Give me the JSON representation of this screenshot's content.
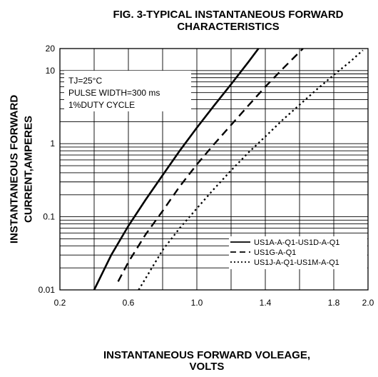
{
  "chart_data": {
    "type": "line",
    "title_line1": "FIG. 3-TYPICAL INSTANTANEOUS FORWARD",
    "title_line2": "CHARACTERISTICS",
    "ylabel_line1": "INSTANTANEOUS FORWARD",
    "ylabel_line2": "CURRENT,AMPERES",
    "xlabel_line1": "INSTANTANEOUS FORWARD VOLEAGE,",
    "xlabel_line2": "VOLTS",
    "xlim": [
      0.2,
      2.0
    ],
    "ylim": [
      0.01,
      20
    ],
    "yscale": "log",
    "grid": true,
    "x_ticks": [
      "0.2",
      "0.6",
      "1.0",
      "1.4",
      "1.8",
      "2.0"
    ],
    "x_tick_values": [
      0.2,
      0.6,
      1.0,
      1.4,
      1.8,
      2.0
    ],
    "y_ticks": [
      "20",
      "10",
      "1",
      "0.1",
      "0.01"
    ],
    "y_tick_values": [
      20,
      10,
      1,
      0.1,
      0.01
    ],
    "conditions": [
      "TJ=25°C",
      "PULSE WIDTH=300 ms",
      "1%DUTY CYCLE"
    ],
    "legend_position": "bottom-right",
    "series": [
      {
        "name": "US1A-A-Q1-US1D-A-Q1",
        "style": "solid",
        "x": [
          0.4,
          0.5,
          0.6,
          0.7,
          0.8,
          0.9,
          1.0,
          1.1,
          1.2,
          1.3,
          1.36
        ],
        "y": [
          0.01,
          0.03,
          0.075,
          0.17,
          0.37,
          0.8,
          1.65,
          3.3,
          6.5,
          13,
          20
        ]
      },
      {
        "name": "US1G-A-Q1",
        "style": "dashed",
        "x": [
          0.54,
          0.6,
          0.7,
          0.8,
          0.9,
          1.0,
          1.1,
          1.2,
          1.3,
          1.4,
          1.5,
          1.62
        ],
        "y": [
          0.013,
          0.024,
          0.057,
          0.12,
          0.26,
          0.52,
          0.98,
          1.8,
          3.3,
          6,
          10.5,
          20
        ]
      },
      {
        "name": "US1J-A-Q1-US1M-A-Q1",
        "style": "dotted",
        "x": [
          0.66,
          0.8,
          0.9,
          1.0,
          1.1,
          1.2,
          1.3,
          1.4,
          1.5,
          1.6,
          1.7,
          1.8,
          1.9,
          1.97
        ],
        "y": [
          0.01,
          0.035,
          0.07,
          0.13,
          0.24,
          0.43,
          0.75,
          1.25,
          2.1,
          3.4,
          5.5,
          8.7,
          13.5,
          19
        ]
      }
    ]
  }
}
